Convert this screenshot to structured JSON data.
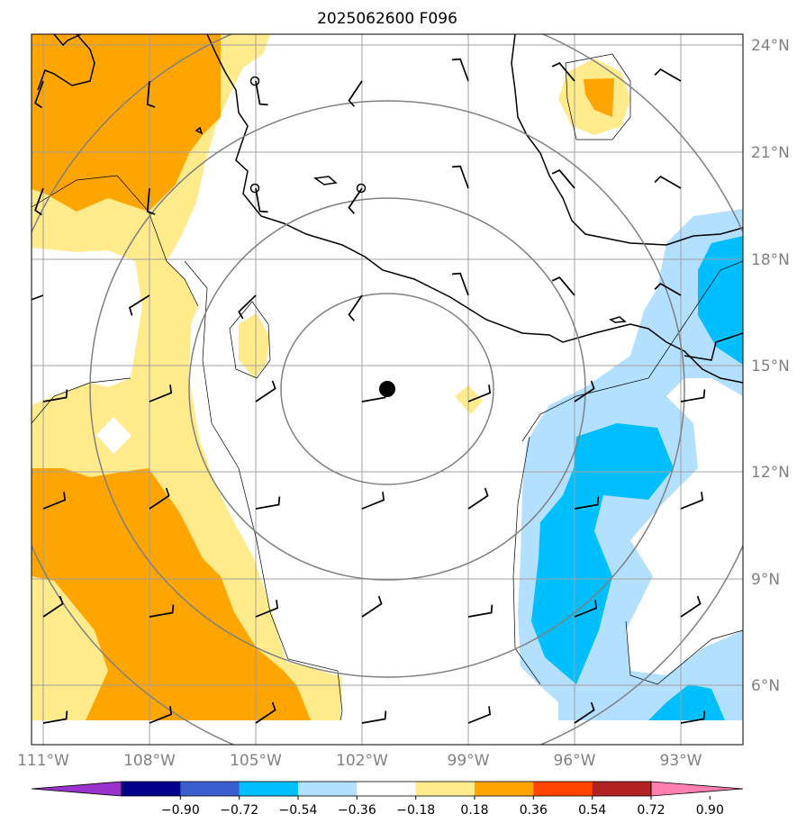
{
  "title": "2025062600 F096",
  "colors": {
    "frame": "#000000",
    "grid": "#a0a0a0",
    "range_rings": "#808080",
    "coast": "#000000",
    "shading_pos_light": "#ffea8c",
    "shading_pos_mid": "#ffa500",
    "shading_neg_light": "#b3e0ff",
    "shading_neg_mid": "#00bfff"
  },
  "map": {
    "lon_range": [
      -111.0,
      -91.0
    ],
    "lat_range": [
      4.5,
      24.5
    ],
    "center": {
      "lon": -101.3,
      "lat": 14.4,
      "marker": "filled-circle"
    },
    "lon_tick_labels": [
      "111°W",
      "108°W",
      "105°W",
      "102°W",
      "99°W",
      "96°W",
      "93°W"
    ],
    "lat_tick_labels": [
      "24°N",
      "21°N",
      "18°N",
      "15°N",
      "12°N",
      "9°N",
      "6°N"
    ],
    "range_ring_count": 4,
    "wind_barbs": "regular grid of wind barbs"
  },
  "colorbar": {
    "labels": [
      "−0.90",
      "−0.72",
      "−0.54",
      "−0.36",
      "−0.18",
      "0.18",
      "0.36",
      "0.54",
      "0.72",
      "0.90"
    ],
    "colors": [
      "#9933cc",
      "#00008b",
      "#3a5fcd",
      "#00bfff",
      "#b3e0ff",
      "#ffffff",
      "#ffea8c",
      "#ffa500",
      "#ff4500",
      "#b22222",
      "#ff80b0"
    ],
    "extend": "both"
  }
}
